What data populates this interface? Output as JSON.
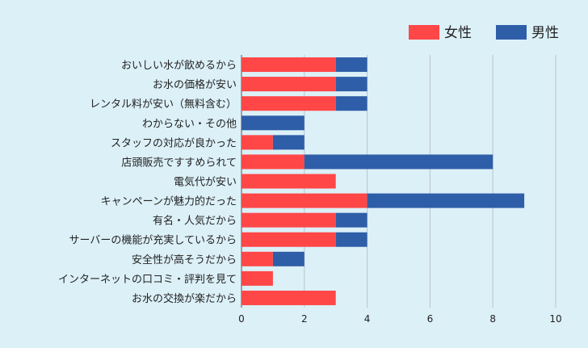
{
  "chart_data": {
    "type": "bar",
    "orientation": "horizontal",
    "stacked": true,
    "categories": [
      "おいしい水が飲めるから",
      "お水の価格が安い",
      "レンタル料が安い（無料含む）",
      "わからない・その他",
      "スタッフの対応が良かった",
      "店頭販売ですすめられて",
      "電気代が安い",
      "キャンペーンが魅力的だった",
      "有名・人気だから",
      "サーバーの機能が充実しているから",
      "安全性が高そうだから",
      "インターネットの口コミ・評判を見て",
      "お水の交換が楽だから"
    ],
    "series": [
      {
        "name": "女性",
        "color": "#ff4747",
        "values": [
          3,
          3,
          3,
          0,
          1,
          2,
          3,
          4,
          3,
          3,
          1,
          1,
          3
        ]
      },
      {
        "name": "男性",
        "color": "#2f5ea8",
        "values": [
          1,
          1,
          1,
          2,
          1,
          6,
          0,
          5,
          1,
          1,
          1,
          0,
          0
        ]
      }
    ],
    "xlim": [
      0,
      10
    ],
    "xticks": [
      0,
      2,
      4,
      6,
      8,
      10
    ],
    "grid": true,
    "legend_position": "top-right",
    "title": "",
    "xlabel": "",
    "ylabel": ""
  }
}
